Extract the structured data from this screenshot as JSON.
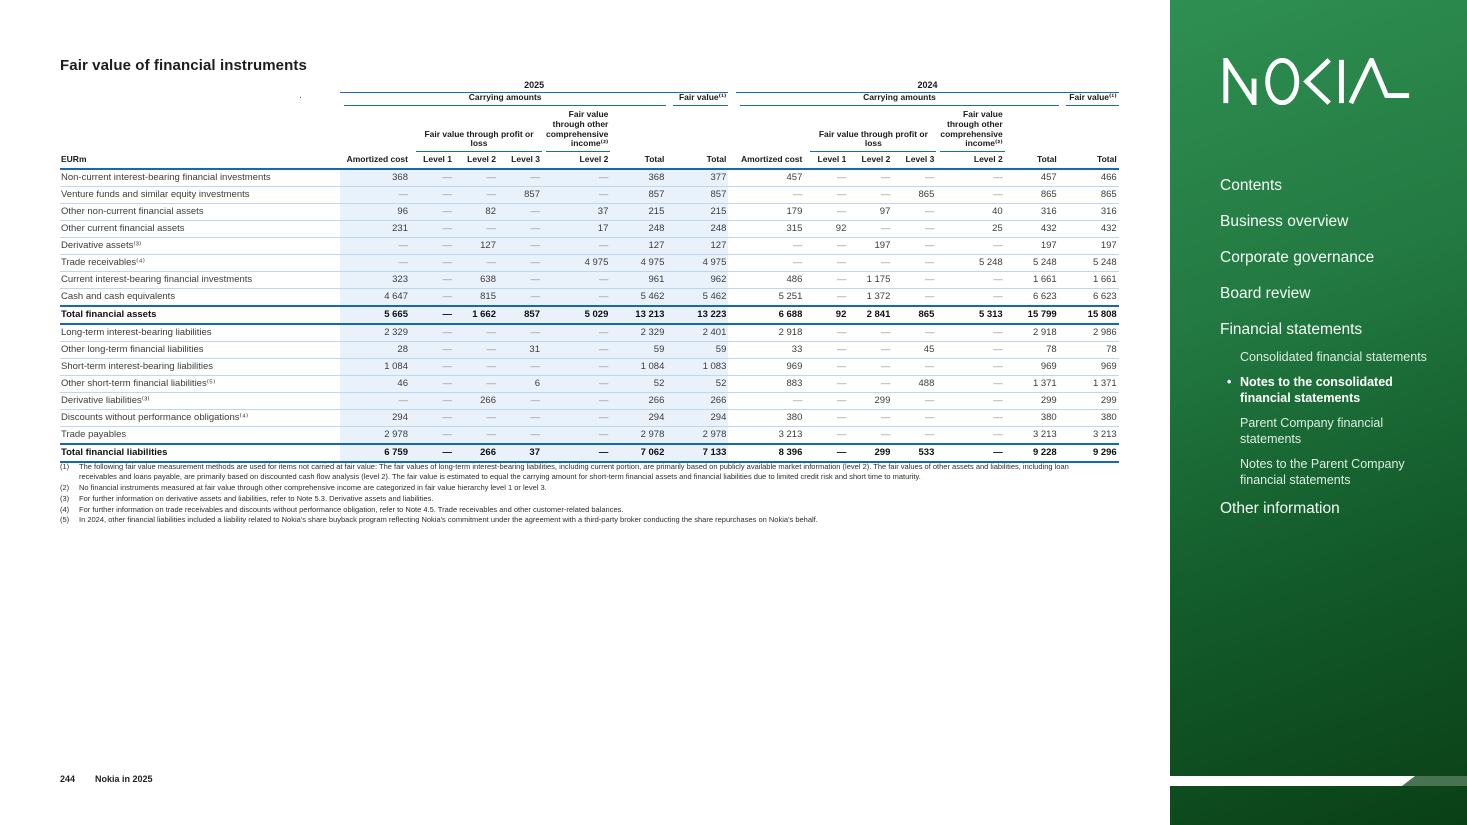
{
  "page": {
    "title": "Fair value of financial instruments",
    "stray_mark": ".",
    "footer": {
      "page_number": "244",
      "brand_line": "Nokia in 2025"
    }
  },
  "table": {
    "unit_label": "EURm",
    "years": [
      "2025",
      "2024"
    ],
    "group_headers": {
      "carrying": "Carrying amounts",
      "fair_value": "Fair value⁽¹⁾",
      "fvtpl": "Fair value through profit or loss",
      "fvoci": "Fair value through other comprehensive income⁽²⁾"
    },
    "col_headers": [
      "Amortized cost",
      "Level 1",
      "Level 2",
      "Level 3",
      "Level 2",
      "Total",
      "Total"
    ],
    "rows": [
      {
        "label": "Non-current interest-bearing financial investments",
        "bold": false,
        "y2025": [
          "368",
          "—",
          "—",
          "—",
          "—",
          "368",
          "377"
        ],
        "y2024": [
          "457",
          "—",
          "—",
          "—",
          "—",
          "457",
          "466"
        ]
      },
      {
        "label": "Venture funds and similar equity investments",
        "bold": false,
        "y2025": [
          "—",
          "—",
          "—",
          "857",
          "—",
          "857",
          "857"
        ],
        "y2024": [
          "—",
          "—",
          "—",
          "865",
          "—",
          "865",
          "865"
        ]
      },
      {
        "label": "Other non-current financial assets",
        "bold": false,
        "y2025": [
          "96",
          "—",
          "82",
          "—",
          "37",
          "215",
          "215"
        ],
        "y2024": [
          "179",
          "—",
          "97",
          "—",
          "40",
          "316",
          "316"
        ]
      },
      {
        "label": "Other current financial assets",
        "bold": false,
        "y2025": [
          "231",
          "—",
          "—",
          "—",
          "17",
          "248",
          "248"
        ],
        "y2024": [
          "315",
          "92",
          "—",
          "—",
          "25",
          "432",
          "432"
        ]
      },
      {
        "label": "Derivative assets⁽³⁾",
        "bold": false,
        "y2025": [
          "—",
          "—",
          "127",
          "—",
          "—",
          "127",
          "127"
        ],
        "y2024": [
          "—",
          "—",
          "197",
          "—",
          "—",
          "197",
          "197"
        ]
      },
      {
        "label": "Trade receivables⁽⁴⁾",
        "bold": false,
        "y2025": [
          "—",
          "—",
          "—",
          "—",
          "4 975",
          "4 975",
          "4 975"
        ],
        "y2024": [
          "—",
          "—",
          "—",
          "—",
          "5 248",
          "5 248",
          "5 248"
        ]
      },
      {
        "label": "Current interest-bearing financial investments",
        "bold": false,
        "y2025": [
          "323",
          "—",
          "638",
          "—",
          "—",
          "961",
          "962"
        ],
        "y2024": [
          "486",
          "—",
          "1 175",
          "—",
          "—",
          "1 661",
          "1 661"
        ]
      },
      {
        "label": "Cash and cash equivalents",
        "bold": false,
        "y2025": [
          "4 647",
          "—",
          "815",
          "—",
          "—",
          "5 462",
          "5 462"
        ],
        "y2024": [
          "5 251",
          "—",
          "1 372",
          "—",
          "—",
          "6 623",
          "6 623"
        ]
      },
      {
        "label": "Total financial assets",
        "bold": true,
        "y2025": [
          "5 665",
          "—",
          "1 662",
          "857",
          "5 029",
          "13 213",
          "13 223"
        ],
        "y2024": [
          "6 688",
          "92",
          "2 841",
          "865",
          "5 313",
          "15 799",
          "15 808"
        ]
      },
      {
        "label": "Long-term interest-bearing liabilities",
        "bold": false,
        "y2025": [
          "2 329",
          "—",
          "—",
          "—",
          "—",
          "2 329",
          "2 401"
        ],
        "y2024": [
          "2 918",
          "—",
          "—",
          "—",
          "—",
          "2 918",
          "2 986"
        ]
      },
      {
        "label": "Other long-term financial liabilities",
        "bold": false,
        "y2025": [
          "28",
          "—",
          "—",
          "31",
          "—",
          "59",
          "59"
        ],
        "y2024": [
          "33",
          "—",
          "—",
          "45",
          "—",
          "78",
          "78"
        ]
      },
      {
        "label": "Short-term interest-bearing liabilities",
        "bold": false,
        "y2025": [
          "1 084",
          "—",
          "—",
          "—",
          "—",
          "1 084",
          "1 083"
        ],
        "y2024": [
          "969",
          "—",
          "—",
          "—",
          "—",
          "969",
          "969"
        ]
      },
      {
        "label": "Other short-term financial liabilities⁽⁵⁾",
        "bold": false,
        "y2025": [
          "46",
          "—",
          "—",
          "6",
          "—",
          "52",
          "52"
        ],
        "y2024": [
          "883",
          "—",
          "—",
          "488",
          "—",
          "1 371",
          "1 371"
        ]
      },
      {
        "label": "Derivative liabilities⁽³⁾",
        "bold": false,
        "y2025": [
          "—",
          "—",
          "266",
          "—",
          "—",
          "266",
          "266"
        ],
        "y2024": [
          "—",
          "—",
          "299",
          "—",
          "—",
          "299",
          "299"
        ]
      },
      {
        "label": "Discounts without performance obligations⁽⁴⁾",
        "bold": false,
        "y2025": [
          "294",
          "—",
          "—",
          "—",
          "—",
          "294",
          "294"
        ],
        "y2024": [
          "380",
          "—",
          "—",
          "—",
          "—",
          "380",
          "380"
        ]
      },
      {
        "label": "Trade payables",
        "bold": false,
        "y2025": [
          "2 978",
          "—",
          "—",
          "—",
          "—",
          "2 978",
          "2 978"
        ],
        "y2024": [
          "3 213",
          "—",
          "—",
          "—",
          "—",
          "3 213",
          "3 213"
        ]
      },
      {
        "label": "Total financial liabilities",
        "bold": true,
        "y2025": [
          "6 759",
          "—",
          "266",
          "37",
          "—",
          "7 062",
          "7 133"
        ],
        "y2024": [
          "8 396",
          "—",
          "299",
          "533",
          "—",
          "9 228",
          "9 296"
        ]
      }
    ]
  },
  "footnotes": [
    {
      "marker": "(1)",
      "text": "The following fair value measurement methods are used for items not carried at fair value: The fair values of long-term interest-bearing liabilities, including current portion, are primarily based on publicly available market information (level 2). The fair values of other assets and liabilities, including loan receivables and loans payable, are primarily based on discounted cash flow analysis (level 2). The fair value is estimated to equal the carrying amount for short-term financial assets and financial liabilities due to limited credit risk and short time to maturity."
    },
    {
      "marker": "(2)",
      "text": "No financial instruments measured at fair value through other comprehensive income are categorized in fair value hierarchy level 1 or level 3."
    },
    {
      "marker": "(3)",
      "text": "For further information on derivative assets and liabilities, refer to Note 5.3. Derivative assets and liabilities."
    },
    {
      "marker": "(4)",
      "text": "For further information on trade receivables and discounts without performance obligation, refer to Note 4.5. Trade receivables and other customer-related balances."
    },
    {
      "marker": "(5)",
      "text": "In 2024, other financial liabilities included a liability related to Nokia's share buyback program reflecting Nokia's commitment under the agreement with a third-party broker conducting the share repurchases on Nokia's behalf."
    }
  ],
  "sidebar": {
    "logo_name": "NOKIA",
    "active_bullet": "•",
    "nav": [
      {
        "label": "Contents",
        "level": 1,
        "active": false
      },
      {
        "label": "Business overview",
        "level": 1,
        "active": false
      },
      {
        "label": "Corporate governance",
        "level": 1,
        "active": false
      },
      {
        "label": "Board review",
        "level": 1,
        "active": false
      },
      {
        "label": "Financial statements",
        "level": 1,
        "active": false
      },
      {
        "label": "Consolidated financial statements",
        "level": 2,
        "active": false
      },
      {
        "label": "Notes to the consolidated financial statements",
        "level": 2,
        "active": true
      },
      {
        "label": "Parent Company financial statements",
        "level": 2,
        "active": false
      },
      {
        "label": "Notes to the Parent Company financial statements",
        "level": 2,
        "active": false
      },
      {
        "label": "Other information",
        "level": 1,
        "active": false
      }
    ]
  },
  "colors": {
    "accent_blue": "#1a6ab5",
    "strong_rule_blue": "#1668b3",
    "row_divider_blue": "#bcd7f0",
    "table_panel_blue": "#e9f1fb",
    "sidebar_green_top": "#2f8f52",
    "sidebar_green_bottom": "#0a4016",
    "active_text": "#ffffff"
  }
}
